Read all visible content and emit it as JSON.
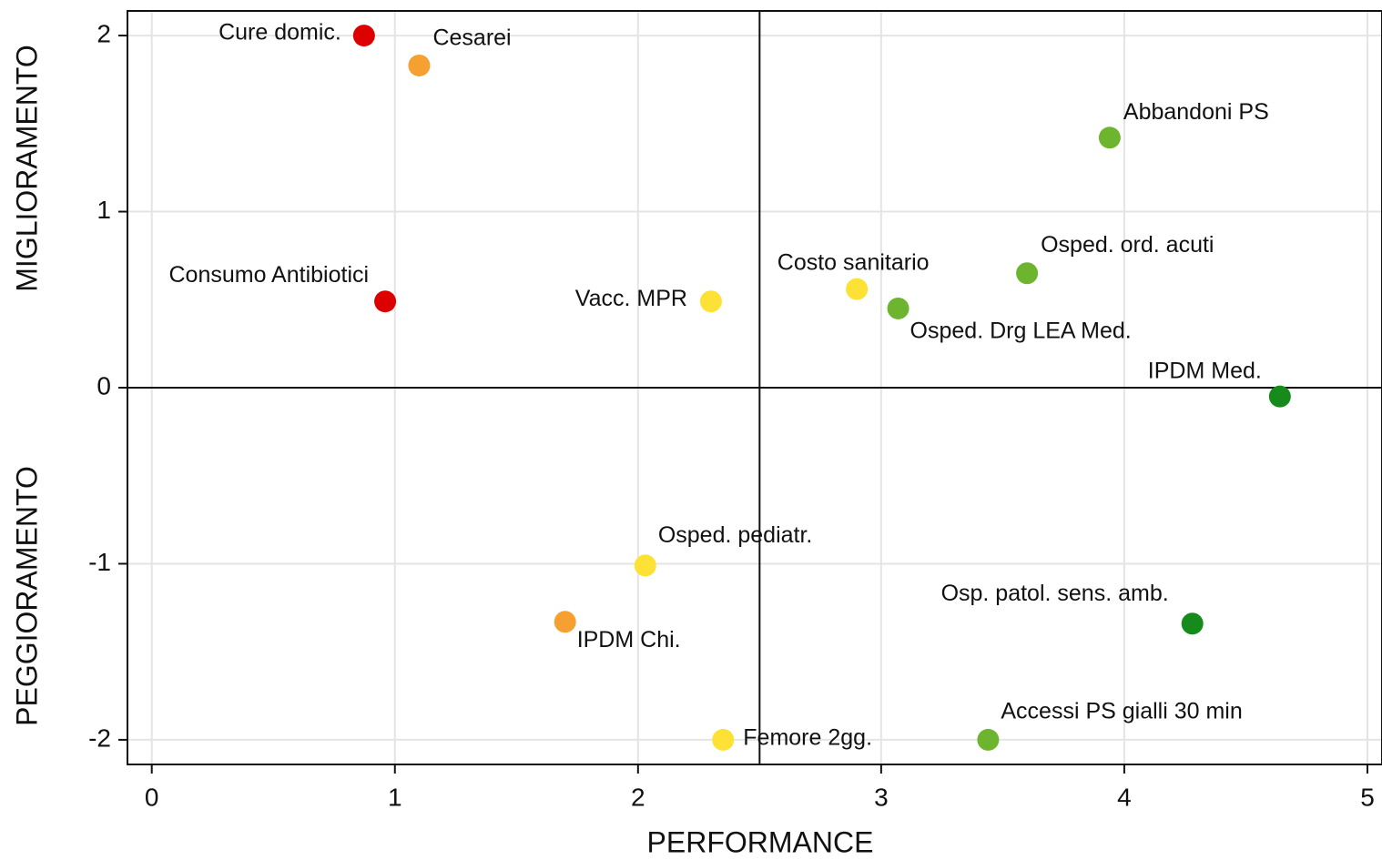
{
  "chart_data": {
    "type": "scatter",
    "xlabel": "PERFORMANCE",
    "ylabel_top": "MIGLIORAMENTO",
    "ylabel_bottom": "PEGGIORAMENTO",
    "labels": [
      "Cure domic.",
      "Cesarei",
      "Abbandoni PS",
      "Osped.  ord. acuti",
      "Costo sanitario",
      "Osped. Drg LEA Med.",
      "Vacc. MPR",
      "Consumo Antibiotici",
      "IPDM Med.",
      "Osped. pediatr.",
      "IPDM Chi.",
      "Osp. patol. sens. amb.",
      "Femore 2gg.",
      "Accessi PS gialli 30 min"
    ],
    "x": [
      0.873,
      1.1,
      3.94,
      3.6,
      2.9,
      3.07,
      2.3,
      0.96,
      4.64,
      2.03,
      1.7,
      4.28,
      2.35,
      3.44
    ],
    "y": [
      2.0,
      1.83,
      1.42,
      0.65,
      0.56,
      0.45,
      0.49,
      0.49,
      -0.05,
      -1.01,
      -1.33,
      -1.34,
      -2.0,
      -2.0
    ],
    "colors": [
      "#dd0000",
      "#f5a030",
      "#6db52e",
      "#6db52e",
      "#fde135",
      "#6db52e",
      "#fde135",
      "#dd0000",
      "#178a1c",
      "#fde135",
      "#f5a030",
      "#178a1c",
      "#fde135",
      "#6db52e"
    ],
    "xlim": [
      -0.1,
      5.06
    ],
    "ylim": [
      -2.14,
      2.14
    ],
    "xticks": [
      0,
      1,
      2,
      3,
      4,
      5
    ],
    "yticks": [
      -2,
      -1,
      0,
      1,
      2
    ],
    "xline": 2.5,
    "yline": 0,
    "grid": true
  }
}
